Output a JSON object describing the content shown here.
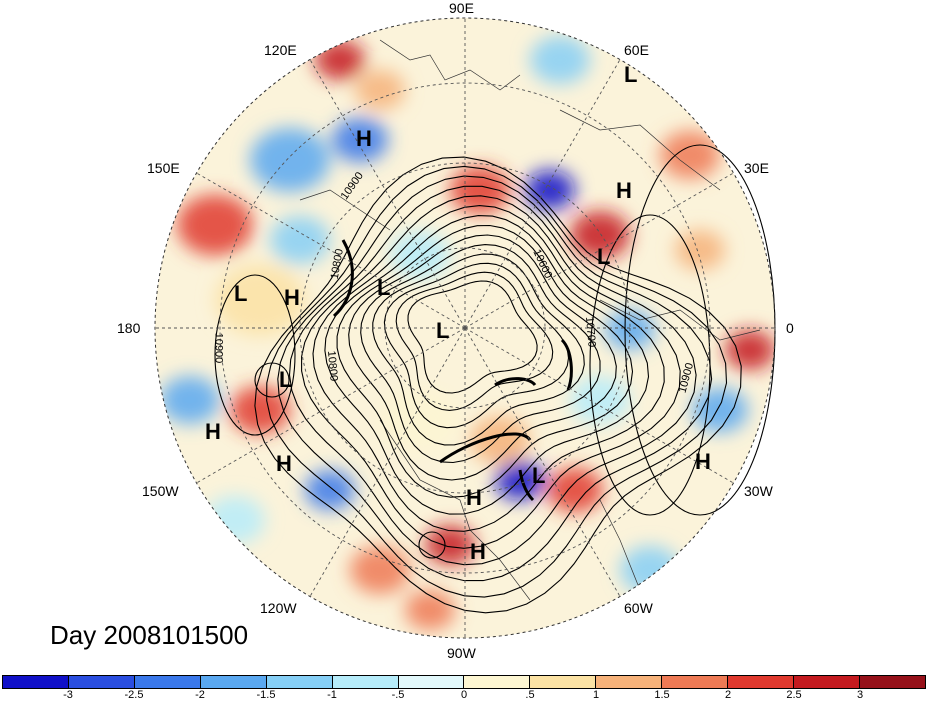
{
  "title": "Day 2008101500",
  "map": {
    "projection": "north polar stereographic",
    "longitude_labels": [
      "90E",
      "60E",
      "30E",
      "0",
      "30W",
      "60W",
      "90W",
      "120W",
      "150W",
      "180",
      "150E",
      "120E"
    ],
    "contour_labels": [
      "10900",
      "10800",
      "10600",
      "10700",
      "10900",
      "10800",
      "10900"
    ],
    "pressure_systems": [
      "H",
      "H",
      "L",
      "L",
      "H",
      "L",
      "L",
      "L",
      "L",
      "H",
      "H",
      "H",
      "H",
      "L",
      "H",
      "L"
    ]
  },
  "colorbar": {
    "ticks": [
      "-3",
      "-2.5",
      "-2",
      "-1.5",
      "-1",
      "-.5",
      "0",
      ".5",
      "1",
      "1.5",
      "2",
      "2.5",
      "3"
    ],
    "colors": [
      "#1010c8",
      "#2a4ee0",
      "#3a78ea",
      "#5aa8f0",
      "#86cff6",
      "#b6ecfa",
      "#e2f8fb",
      "#fdf6d2",
      "#fbe2a4",
      "#f6b27a",
      "#ee7a55",
      "#e0392e",
      "#c41a1f",
      "#96111a"
    ]
  }
}
